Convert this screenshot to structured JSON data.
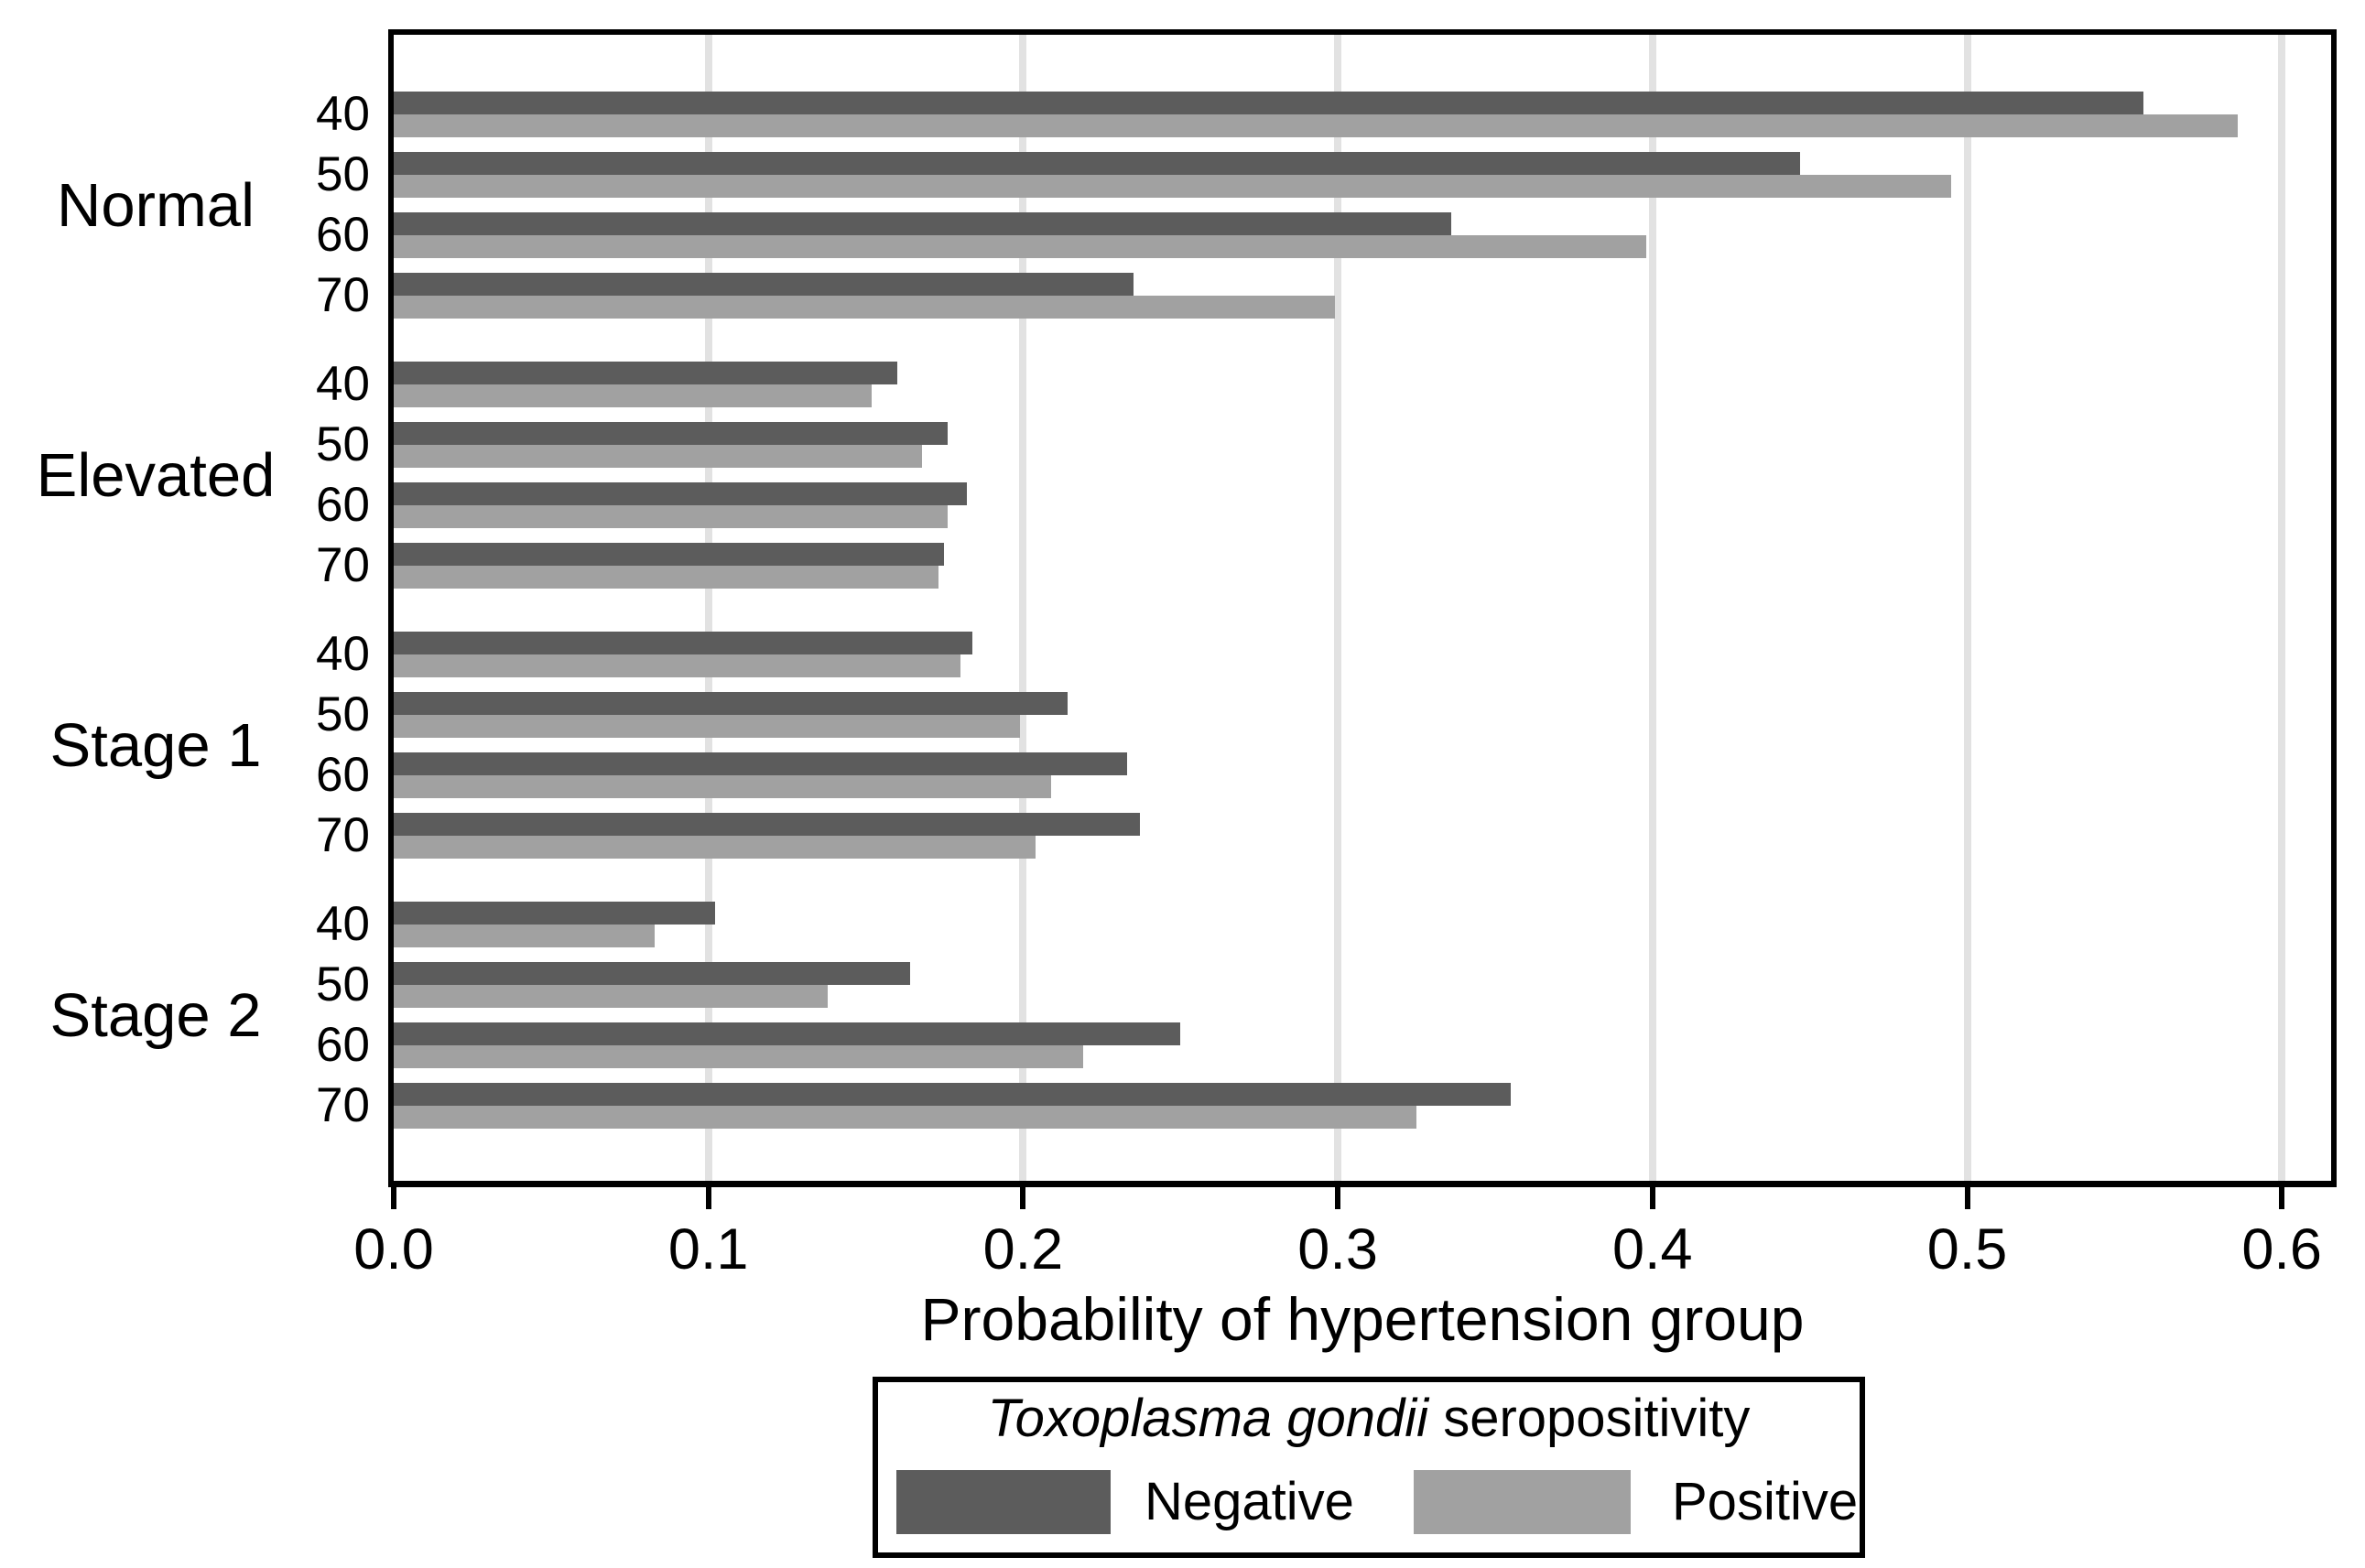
{
  "chart_data": {
    "type": "bar",
    "orientation": "horizontal",
    "xlabel": "Probability of hypertension group",
    "xlim": [
      0,
      0.62
    ],
    "xticks": [
      0.0,
      0.1,
      0.2,
      0.3,
      0.4,
      0.5,
      0.6
    ],
    "xtick_labels": [
      "0.0",
      "0.1",
      "0.2",
      "0.3",
      "0.4",
      "0.5",
      "0.6"
    ],
    "grid": "vertical-gridlines-on",
    "ages": [
      "40",
      "50",
      "60",
      "70"
    ],
    "series": [
      {
        "name": "Negative",
        "color": "#5c5c5c"
      },
      {
        "name": "Positive",
        "color": "#a1a1a1"
      }
    ],
    "groups": [
      {
        "label": "Normal",
        "negative": [
          0.556,
          0.447,
          0.336,
          0.235
        ],
        "positive": [
          0.586,
          0.495,
          0.398,
          0.299
        ]
      },
      {
        "label": "Elevated",
        "negative": [
          0.16,
          0.176,
          0.182,
          0.175
        ],
        "positive": [
          0.152,
          0.168,
          0.176,
          0.173
        ]
      },
      {
        "label": "Stage 1",
        "negative": [
          0.184,
          0.214,
          0.233,
          0.237
        ],
        "positive": [
          0.18,
          0.199,
          0.209,
          0.204
        ]
      },
      {
        "label": "Stage 2",
        "negative": [
          0.102,
          0.164,
          0.25,
          0.355
        ],
        "positive": [
          0.083,
          0.138,
          0.219,
          0.325
        ]
      }
    ],
    "legend": {
      "position": "bottom",
      "title_italic": "Toxoplasma gondii",
      "title_rest": " seropositivity",
      "entries": [
        "Negative",
        "Positive"
      ]
    }
  },
  "colors": {
    "negative": "#5c5c5c",
    "positive": "#a1a1a1",
    "gridline": "#e2e2e2",
    "axis": "#000000",
    "background": "#ffffff"
  }
}
